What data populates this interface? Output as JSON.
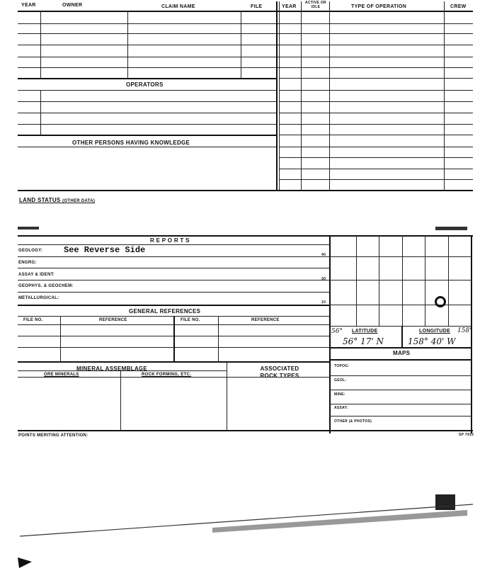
{
  "top_table": {
    "headers": [
      "YEAR",
      "OWNER",
      "CLAIM NAME",
      "FILE",
      "YEAR",
      "ACTIVE OR IDLE",
      "TYPE OF OPERATION",
      "CREW"
    ]
  },
  "operators": "OPERATORS",
  "other_persons": "OTHER PERSONS HAVING KNOWLEDGE",
  "land_status": {
    "label": "LAND STATUS",
    "sub": "(OTHER DATA)"
  },
  "reports": {
    "title": "R E P O R T S",
    "rows": [
      {
        "label": "GEOLOGY:",
        "value": "See Reverse Side",
        "scale": "40"
      },
      {
        "label": "ENGRG:",
        "value": "",
        "scale": ""
      },
      {
        "label": "ASSAY & IDENT:",
        "value": "",
        "scale": "30"
      },
      {
        "label": "GEOPHYS. & GEOCHEM:",
        "value": "",
        "scale": ""
      },
      {
        "label": "METALLURGICAL:",
        "value": "",
        "scale": "10"
      }
    ]
  },
  "general_references": {
    "title": "GENERAL  REFERENCES",
    "headers": [
      "FILE NO.",
      "REFERENCE",
      "FILE NO.",
      "REFERENCE"
    ]
  },
  "mineral": {
    "title": "MINERAL  ASSEMBLAGE",
    "ore": "ORE MINERALS",
    "rock": "ROCK FORMING, ETC.",
    "assoc": "ASSOCIATED ROCK TYPES"
  },
  "location": {
    "lat_label": "LATITUDE",
    "lon_label": "LONGITUDE",
    "lat_prefix": "56°",
    "lon_suffix": "158°",
    "lat_value": "56° 17' N",
    "lon_value": "158° 40' W"
  },
  "maps": {
    "title": "MAPS",
    "rows": [
      "TOPOG:",
      "GEOL:",
      "MINE:",
      "ASSAY:",
      "OTHER (& PHOTOS)"
    ]
  },
  "points": "POINTS MERITING ATTENTION:",
  "form_no": "SP 7915"
}
